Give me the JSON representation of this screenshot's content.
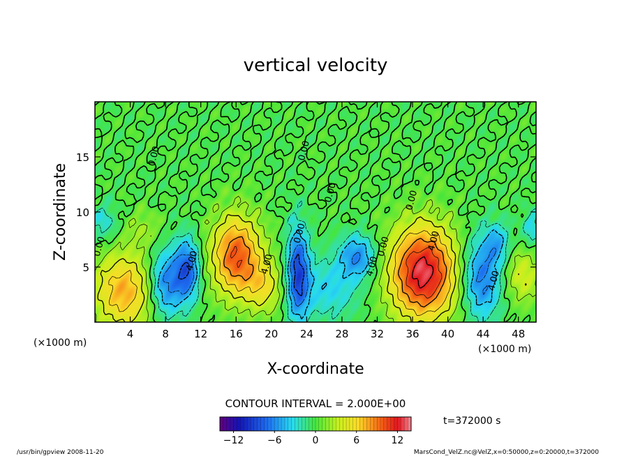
{
  "chart_data": {
    "type": "heatmap",
    "title": "vertical velocity",
    "xlabel": "X-coordinate",
    "ylabel": "Z-coordinate",
    "x_unit_left": "(×1000 m)",
    "x_unit_right": "(×1000 m)",
    "xlim": [
      0,
      50
    ],
    "ylim": [
      0,
      20
    ],
    "x_ticks": [
      4,
      8,
      12,
      16,
      20,
      24,
      28,
      32,
      36,
      40,
      44,
      48
    ],
    "y_ticks": [
      5,
      10,
      15
    ],
    "contour_interval_text": "CONTOUR INTERVAL = 2.000E+00",
    "time_text": "t=372000 s",
    "contour_labels": [
      {
        "text": "0.00",
        "x": 0.8,
        "y": 6.8
      },
      {
        "text": "4.00",
        "x": 11.3,
        "y": 5.5
      },
      {
        "text": "4.00",
        "x": 19.8,
        "y": 5.2
      },
      {
        "text": "0.00",
        "x": 23.5,
        "y": 8.0
      },
      {
        "text": "0.00",
        "x": 7.0,
        "y": 15.0
      },
      {
        "text": "0.00",
        "x": 24.0,
        "y": 15.5
      },
      {
        "text": "0.00",
        "x": 27.0,
        "y": 11.7
      },
      {
        "text": "0.00",
        "x": 36.2,
        "y": 11.0
      },
      {
        "text": "0.00",
        "x": 33.0,
        "y": 6.8
      },
      {
        "text": "4.00",
        "x": 31.7,
        "y": 5.0
      },
      {
        "text": "4.00",
        "x": 38.7,
        "y": 7.3
      },
      {
        "text": "4.00",
        "x": 45.5,
        "y": 3.7
      }
    ],
    "colorbar": {
      "min": -14,
      "max": 14,
      "tick_values": [
        -12,
        -6,
        0,
        6,
        12
      ],
      "tick_labels": [
        "−12",
        "−6",
        "0",
        "6",
        "12"
      ]
    },
    "cells": [
      {
        "x": 3.3,
        "y": 2.8,
        "sx": 2.5,
        "sy": 2.5,
        "amp": 7.5
      },
      {
        "x": 8.0,
        "y": 3.5,
        "sx": 1.4,
        "sy": 2.2,
        "amp": -7.0
      },
      {
        "x": 10.5,
        "y": 4.8,
        "sx": 1.0,
        "sy": 2.0,
        "amp": -7.5
      },
      {
        "x": 16.0,
        "y": 6.0,
        "sx": 2.0,
        "sy": 2.6,
        "amp": 10.0
      },
      {
        "x": 19.2,
        "y": 3.2,
        "sx": 1.5,
        "sy": 1.7,
        "amp": 4.5
      },
      {
        "x": 23.0,
        "y": 4.5,
        "sx": 0.9,
        "sy": 3.0,
        "amp": -8.5
      },
      {
        "x": 26.5,
        "y": 3.0,
        "sx": 2.5,
        "sy": 2.0,
        "amp": -3.5
      },
      {
        "x": 29.8,
        "y": 6.0,
        "sx": 1.5,
        "sy": 1.4,
        "amp": -6.0
      },
      {
        "x": 37.2,
        "y": 4.5,
        "sx": 2.7,
        "sy": 3.0,
        "amp": 13.0
      },
      {
        "x": 43.8,
        "y": 4.0,
        "sx": 1.6,
        "sy": 2.6,
        "amp": -7.0
      },
      {
        "x": 45.6,
        "y": 7.2,
        "sx": 1.0,
        "sy": 1.3,
        "amp": -4.0
      },
      {
        "x": 48.5,
        "y": 4.2,
        "sx": 1.5,
        "sy": 1.8,
        "amp": 4.0
      },
      {
        "x": 5.5,
        "y": 8.5,
        "sx": 1.5,
        "sy": 1.2,
        "amp": 2.0
      },
      {
        "x": 1.0,
        "y": 9.0,
        "sx": 1.2,
        "sy": 1.2,
        "amp": -3.0
      },
      {
        "x": 49.5,
        "y": 8.5,
        "sx": 0.8,
        "sy": 1.2,
        "amp": -3.5
      }
    ],
    "grid": false,
    "colormap": "rainbow"
  },
  "footer": {
    "left": "/usr/bin/gpview  2008-11-20",
    "right": "MarsCond_VelZ.nc@VelZ,x=0:50000,z=0:20000,t=372000"
  },
  "colors": {
    "contour": "#000000",
    "background": "#ffffff"
  }
}
